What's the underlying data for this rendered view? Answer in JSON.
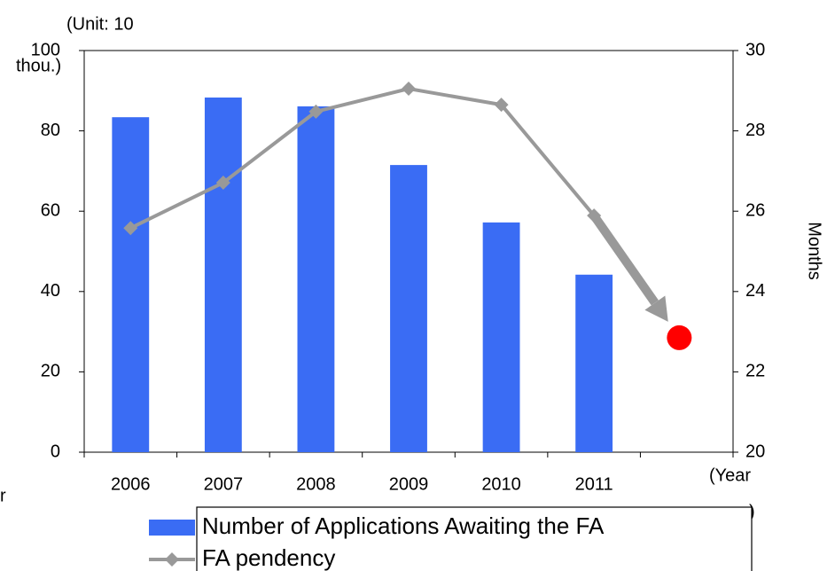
{
  "chart_data": {
    "type": "bar_line",
    "unit_label": [
      "(Unit: 10",
      "thou.)"
    ],
    "y2_label": "Months",
    "x_label": [
      "(Year",
      ")"
    ],
    "clipped_text": "r",
    "categories": [
      "2006",
      "2007",
      "2008",
      "2009",
      "2010",
      "2011",
      null
    ],
    "series": [
      {
        "name": "Number of Applications Awaiting the FA",
        "color": "#3a6cf4",
        "kind": "bar",
        "values": [
          83.4,
          88.3,
          86.1,
          71.5,
          57.2,
          44.2,
          null
        ]
      },
      {
        "name": "FA pendency",
        "color": "#999999",
        "kind": "line",
        "axis": "y2",
        "values": [
          25.58,
          26.71,
          28.48,
          29.05,
          28.65,
          25.89,
          null
        ]
      }
    ],
    "target": {
      "value": 22.85,
      "color": "#ff0000",
      "axis": "y2"
    },
    "ylim": [
      0,
      100
    ],
    "yticks": [
      0,
      20,
      40,
      60,
      80,
      100
    ],
    "y2lim": [
      20,
      30
    ],
    "y2ticks": [
      20,
      22,
      24,
      26,
      28,
      30
    ]
  }
}
